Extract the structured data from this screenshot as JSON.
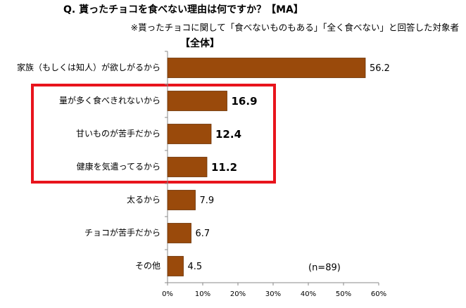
{
  "chart_data": {
    "type": "hbar",
    "title": "Q. 貰ったチョコを食べない理由は何ですか？【MA】",
    "subtitle": "※貰ったチョコに関して「食べないものもある」「全く食べない」と回答した対象者",
    "group_label": "【全体】",
    "annotation": "(n=89)",
    "categories": [
      "家族（もしくは知人）が欲しがるから",
      "量が多く食べきれないから",
      "甘いものが苦手だから",
      "健康を気遣ってるから",
      "太るから",
      "チョコが苦手だから",
      "その他"
    ],
    "values": [
      56.2,
      16.9,
      12.4,
      11.2,
      7.9,
      6.7,
      4.5
    ],
    "color": "#9a4a0b",
    "xlim": [
      0,
      60
    ],
    "xticks": [
      {
        "value": 0,
        "label": "0%"
      },
      {
        "value": 10,
        "label": "10%"
      },
      {
        "value": 20,
        "label": "20%"
      },
      {
        "value": 30,
        "label": "30%"
      },
      {
        "value": 40,
        "label": "40%"
      },
      {
        "value": 50,
        "label": "50%"
      },
      {
        "value": 60,
        "label": "60%"
      }
    ],
    "grid": false
  }
}
